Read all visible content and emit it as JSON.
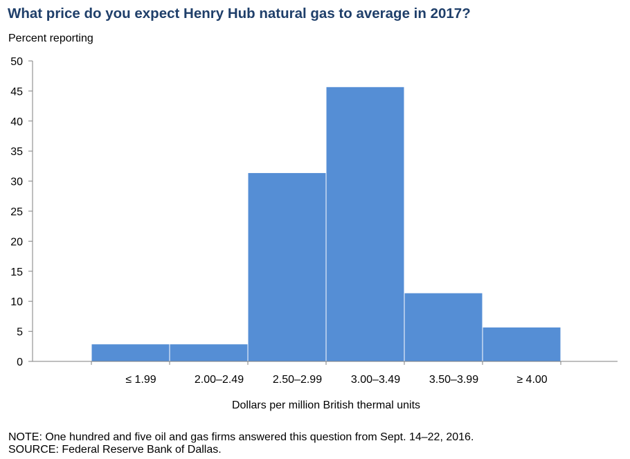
{
  "title": "What price do you expect Henry Hub natural gas to average in 2017?",
  "ylabel": "Percent reporting",
  "xlabel": "Dollars per million British thermal units",
  "note": "NOTE: One hundred and five oil and gas firms answered this question from Sept. 14–22, 2016.",
  "source": "SOURCE: Federal Reserve Bank of Dallas.",
  "colors": {
    "bar": "#558ed5",
    "axis": "#7f7f7f",
    "title": "#1f3f6a"
  },
  "chart_data": {
    "type": "bar",
    "title": "What price do you expect Henry Hub natural gas to average in 2017?",
    "xlabel": "Dollars per million British thermal units",
    "ylabel": "Percent reporting",
    "categories": [
      "≤ 1.99",
      "2.00–2.49",
      "2.50–2.99",
      "3.00–3.49",
      "3.50–3.99",
      "≥ 4.00"
    ],
    "values": [
      2.9,
      2.9,
      31.4,
      45.7,
      11.4,
      5.7
    ],
    "ylim": [
      0,
      50
    ],
    "yticks": [
      0,
      5,
      10,
      15,
      20,
      25,
      30,
      35,
      40,
      45,
      50
    ],
    "grid": false,
    "legend": "none"
  }
}
